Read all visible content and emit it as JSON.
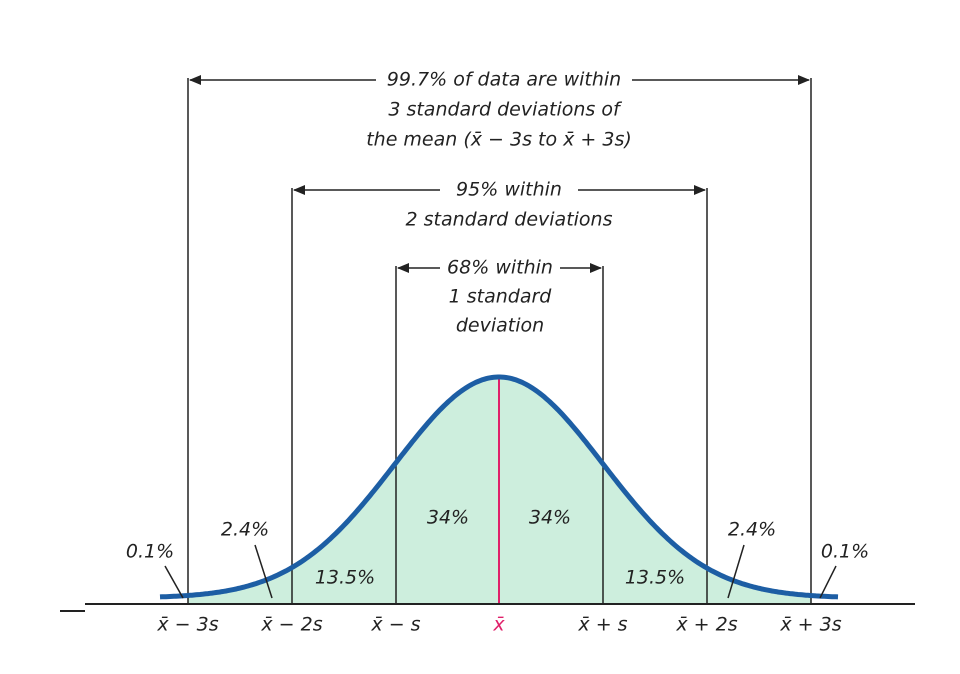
{
  "brackets": [
    {
      "lines": [
        "99.7% of data are within",
        "3 standard deviations of",
        "the mean (x̄ − 3s to x̄ + 3s)"
      ]
    },
    {
      "lines": [
        "95% within",
        "2 standard deviations"
      ]
    },
    {
      "lines": [
        "68% within",
        "1 standard",
        "deviation"
      ]
    }
  ],
  "regions": [
    "0.1%",
    "2.4%",
    "13.5%",
    "34%",
    "34%",
    "13.5%",
    "2.4%",
    "0.1%"
  ],
  "axis_labels": [
    "x̄ − 3s",
    "x̄ − 2s",
    "x̄ − s",
    "x̄",
    "x̄ + s",
    "x̄ + 2s",
    "x̄ + 3s"
  ]
}
